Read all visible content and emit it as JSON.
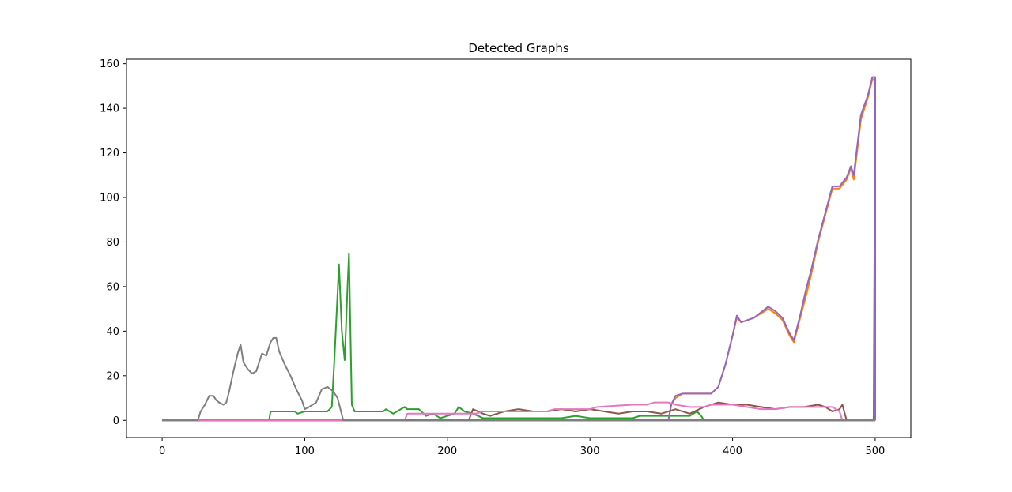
{
  "chart_data": {
    "type": "line",
    "title": "Detected Graphs",
    "xlabel": "",
    "ylabel": "",
    "xlim": [
      -25,
      525
    ],
    "ylim": [
      -7.7,
      162
    ],
    "xticks": [
      0,
      100,
      200,
      300,
      400,
      500
    ],
    "yticks": [
      0,
      20,
      40,
      60,
      80,
      100,
      120,
      140,
      160
    ],
    "grid": false,
    "legend": "none",
    "series": [
      {
        "color": "#1f77b4",
        "points": [
          [
            0,
            0
          ],
          [
            500,
            0
          ]
        ]
      },
      {
        "color": "#ff7f0e",
        "points": [
          [
            0,
            0
          ],
          [
            355,
            0
          ],
          [
            357,
            7
          ],
          [
            360,
            10
          ],
          [
            365,
            12
          ],
          [
            375,
            12
          ],
          [
            385,
            12
          ],
          [
            390,
            15
          ],
          [
            395,
            25
          ],
          [
            400,
            38
          ],
          [
            403,
            46
          ],
          [
            406,
            44
          ],
          [
            415,
            46
          ],
          [
            425,
            50
          ],
          [
            430,
            48
          ],
          [
            435,
            45
          ],
          [
            440,
            38
          ],
          [
            443,
            35
          ],
          [
            447,
            45
          ],
          [
            452,
            57
          ],
          [
            455,
            65
          ],
          [
            460,
            80
          ],
          [
            465,
            92
          ],
          [
            470,
            104
          ],
          [
            475,
            104
          ],
          [
            480,
            108
          ],
          [
            483,
            113
          ],
          [
            485,
            108
          ],
          [
            490,
            135
          ],
          [
            495,
            145
          ],
          [
            498,
            153
          ],
          [
            500,
            153
          ],
          [
            500,
            0
          ]
        ]
      },
      {
        "color": "#2ca02c",
        "points": [
          [
            0,
            0
          ],
          [
            75,
            0
          ],
          [
            76,
            4
          ],
          [
            93,
            4
          ],
          [
            95,
            3
          ],
          [
            100,
            4
          ],
          [
            116,
            4
          ],
          [
            119,
            6
          ],
          [
            121,
            30
          ],
          [
            124,
            70
          ],
          [
            126,
            40
          ],
          [
            128,
            27
          ],
          [
            130,
            60
          ],
          [
            131,
            75
          ],
          [
            133,
            7
          ],
          [
            135,
            4
          ],
          [
            155,
            4
          ],
          [
            157,
            5
          ],
          [
            162,
            3
          ],
          [
            170,
            6
          ],
          [
            172,
            5
          ],
          [
            180,
            5
          ],
          [
            185,
            2
          ],
          [
            190,
            3
          ],
          [
            195,
            1
          ],
          [
            200,
            2
          ],
          [
            205,
            3
          ],
          [
            208,
            6
          ],
          [
            212,
            4
          ],
          [
            218,
            3
          ],
          [
            225,
            1
          ],
          [
            260,
            1
          ],
          [
            280,
            1
          ],
          [
            290,
            2
          ],
          [
            300,
            1
          ],
          [
            330,
            1
          ],
          [
            335,
            2
          ],
          [
            345,
            2
          ],
          [
            370,
            2
          ],
          [
            375,
            4
          ],
          [
            378,
            2
          ],
          [
            380,
            0
          ],
          [
            500,
            0
          ]
        ]
      },
      {
        "color": "#d62728",
        "points": [
          [
            0,
            0
          ],
          [
            499,
            0
          ],
          [
            500,
            154
          ],
          [
            500,
            0
          ]
        ]
      },
      {
        "color": "#9467bd",
        "points": [
          [
            0,
            0
          ],
          [
            355,
            0
          ],
          [
            357,
            7
          ],
          [
            360,
            11
          ],
          [
            365,
            12
          ],
          [
            375,
            12
          ],
          [
            385,
            12
          ],
          [
            390,
            15
          ],
          [
            395,
            25
          ],
          [
            400,
            38
          ],
          [
            403,
            47
          ],
          [
            406,
            44
          ],
          [
            415,
            46
          ],
          [
            425,
            51
          ],
          [
            430,
            49
          ],
          [
            435,
            46
          ],
          [
            440,
            39
          ],
          [
            443,
            36
          ],
          [
            447,
            46
          ],
          [
            452,
            60
          ],
          [
            455,
            67
          ],
          [
            460,
            81
          ],
          [
            465,
            93
          ],
          [
            470,
            105
          ],
          [
            475,
            105
          ],
          [
            480,
            109
          ],
          [
            483,
            114
          ],
          [
            485,
            110
          ],
          [
            490,
            137
          ],
          [
            495,
            146
          ],
          [
            498,
            154
          ],
          [
            500,
            154
          ],
          [
            500,
            0
          ]
        ]
      },
      {
        "color": "#8c564b",
        "points": [
          [
            0,
            0
          ],
          [
            215,
            0
          ],
          [
            218,
            5
          ],
          [
            225,
            3
          ],
          [
            230,
            2
          ],
          [
            240,
            4
          ],
          [
            250,
            5
          ],
          [
            260,
            4
          ],
          [
            270,
            4
          ],
          [
            280,
            5
          ],
          [
            290,
            4
          ],
          [
            300,
            5
          ],
          [
            310,
            4
          ],
          [
            320,
            3
          ],
          [
            330,
            4
          ],
          [
            340,
            4
          ],
          [
            350,
            3
          ],
          [
            360,
            5
          ],
          [
            370,
            3
          ],
          [
            380,
            6
          ],
          [
            390,
            8
          ],
          [
            400,
            7
          ],
          [
            410,
            7
          ],
          [
            420,
            6
          ],
          [
            430,
            5
          ],
          [
            440,
            6
          ],
          [
            450,
            6
          ],
          [
            460,
            7
          ],
          [
            465,
            6
          ],
          [
            470,
            4
          ],
          [
            475,
            5
          ],
          [
            477,
            7
          ],
          [
            480,
            0
          ],
          [
            500,
            0
          ]
        ]
      },
      {
        "color": "#e377c2",
        "points": [
          [
            0,
            0
          ],
          [
            170,
            0
          ],
          [
            172,
            3
          ],
          [
            220,
            3
          ],
          [
            225,
            4
          ],
          [
            270,
            4
          ],
          [
            275,
            5
          ],
          [
            300,
            5
          ],
          [
            305,
            6
          ],
          [
            330,
            7
          ],
          [
            340,
            7
          ],
          [
            345,
            8
          ],
          [
            355,
            8
          ],
          [
            360,
            7
          ],
          [
            370,
            6
          ],
          [
            380,
            6
          ],
          [
            385,
            7
          ],
          [
            400,
            7
          ],
          [
            410,
            6
          ],
          [
            420,
            5
          ],
          [
            430,
            5
          ],
          [
            440,
            6
          ],
          [
            470,
            6
          ],
          [
            475,
            4
          ],
          [
            477,
            0
          ],
          [
            500,
            0
          ]
        ]
      },
      {
        "color": "#7f7f7f",
        "points": [
          [
            0,
            0
          ],
          [
            25,
            0
          ],
          [
            27,
            4
          ],
          [
            30,
            7
          ],
          [
            33,
            11
          ],
          [
            36,
            11
          ],
          [
            38,
            9
          ],
          [
            40,
            8
          ],
          [
            43,
            7
          ],
          [
            45,
            8
          ],
          [
            47,
            13
          ],
          [
            50,
            22
          ],
          [
            53,
            30
          ],
          [
            55,
            34
          ],
          [
            57,
            26
          ],
          [
            60,
            23
          ],
          [
            63,
            21
          ],
          [
            66,
            22
          ],
          [
            70,
            30
          ],
          [
            73,
            29
          ],
          [
            76,
            35
          ],
          [
            78,
            37
          ],
          [
            80,
            37
          ],
          [
            82,
            31
          ],
          [
            86,
            25
          ],
          [
            90,
            20
          ],
          [
            94,
            14
          ],
          [
            98,
            9
          ],
          [
            100,
            5
          ],
          [
            103,
            6
          ],
          [
            108,
            8
          ],
          [
            112,
            14
          ],
          [
            116,
            15
          ],
          [
            120,
            13
          ],
          [
            123,
            10
          ],
          [
            125,
            5
          ],
          [
            127,
            0
          ],
          [
            500,
            0
          ]
        ]
      }
    ]
  }
}
